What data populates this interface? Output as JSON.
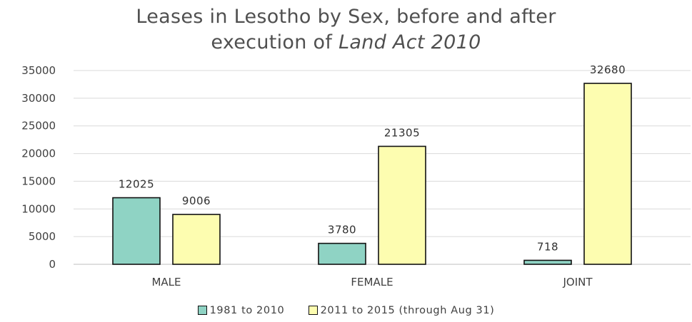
{
  "chart_data": {
    "type": "bar",
    "title_line1": "Leases in Lesotho by Sex, before and after",
    "title_line2_prefix": "execution of ",
    "title_line2_italic": "Land Act 2010",
    "categories": [
      "MALE",
      "FEMALE",
      "JOINT"
    ],
    "series": [
      {
        "name": "1981 to 2010",
        "values": [
          12025,
          3780,
          718
        ],
        "color": "#8fd3c4"
      },
      {
        "name": "2011 to 2015 (through Aug 31)",
        "values": [
          9006,
          21305,
          32680
        ],
        "color": "#fdfdb0"
      }
    ],
    "ylim": [
      0,
      35000
    ],
    "yticks": [
      0,
      5000,
      10000,
      15000,
      20000,
      25000,
      30000,
      35000
    ],
    "grid": true,
    "legend": "bottom"
  }
}
